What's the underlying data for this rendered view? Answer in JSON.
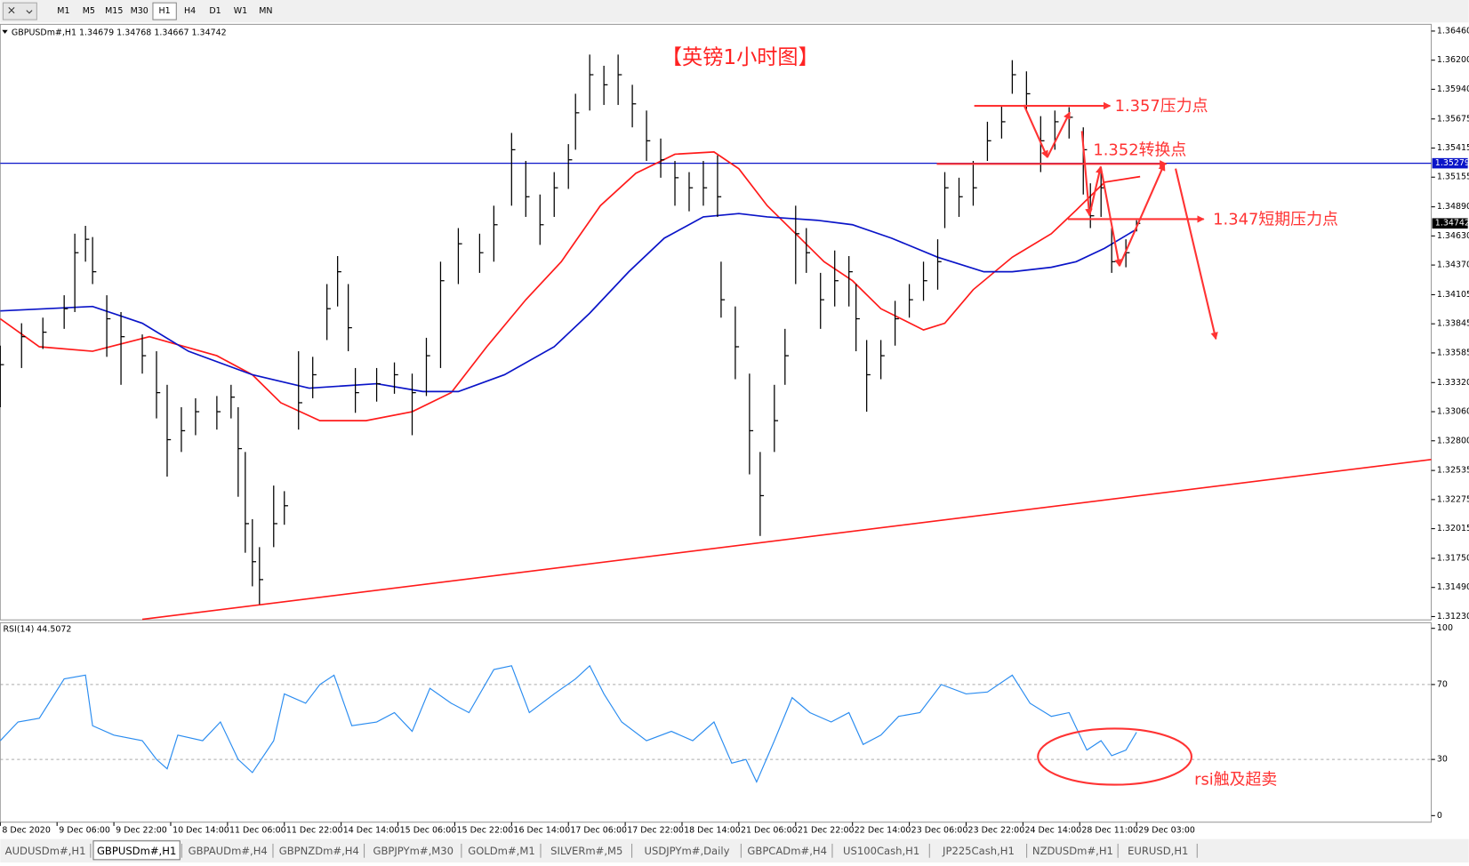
{
  "toolbar": {
    "timeframes": [
      "M1",
      "M5",
      "M15",
      "M30",
      "H1",
      "H4",
      "D1",
      "W1",
      "MN"
    ],
    "active": 4
  },
  "chart_data": {
    "type": "hlc",
    "symbol_header": "GBPUSDm#,H1  1.34679 1.34768 1.34667 1.34742",
    "title": "【英镑1小时图】",
    "color": "#000000",
    "x": [
      0,
      6,
      12,
      18,
      21,
      24,
      26,
      30,
      34,
      40,
      44,
      47,
      51,
      55,
      61,
      65,
      67,
      69,
      71,
      73,
      77,
      80,
      84,
      88,
      92,
      95,
      98,
      100,
      106,
      111,
      116,
      120,
      124,
      129,
      135,
      139,
      144,
      148,
      152,
      156,
      160,
      162,
      166,
      170,
      174,
      178,
      182,
      186,
      190,
      194,
      198,
      202,
      203,
      207,
      211,
      214,
      218,
      221,
      224,
      227,
      231,
      235,
      239,
      241,
      244,
      248,
      252,
      256,
      260,
      264,
      266,
      270,
      274,
      278,
      282,
      285,
      289,
      293,
      297,
      301,
      305,
      307,
      310,
      313,
      317,
      320
    ],
    "high": [
      1.3365,
      1.3385,
      1.339,
      1.341,
      1.3465,
      1.3472,
      1.3462,
      1.341,
      1.3395,
      1.3375,
      1.336,
      1.333,
      1.331,
      1.3318,
      1.332,
      1.333,
      1.331,
      1.327,
      1.321,
      1.3185,
      1.324,
      1.3235,
      1.336,
      1.3355,
      1.342,
      1.3445,
      1.342,
      1.3345,
      1.3345,
      1.335,
      1.334,
      1.3372,
      1.344,
      1.347,
      1.3465,
      1.349,
      1.3555,
      1.353,
      1.35,
      1.352,
      1.3545,
      1.359,
      1.3625,
      1.3615,
      1.3625,
      1.3598,
      1.3575,
      1.355,
      1.353,
      1.352,
      1.353,
      1.3535,
      1.344,
      1.34,
      1.334,
      1.327,
      1.333,
      1.338,
      1.349,
      1.347,
      1.343,
      1.345,
      1.3445,
      1.342,
      1.337,
      1.337,
      1.3405,
      1.342,
      1.344,
      1.346,
      1.352,
      1.3515,
      1.353,
      1.3565,
      1.358,
      1.362,
      1.361,
      1.357,
      1.3575,
      1.3578,
      1.356,
      1.351,
      1.352,
      1.347,
      1.346,
      1.3477
    ],
    "low": [
      1.331,
      1.3345,
      1.3362,
      1.338,
      1.3395,
      1.344,
      1.342,
      1.3355,
      1.333,
      1.334,
      1.33,
      1.3248,
      1.327,
      1.3285,
      1.329,
      1.33,
      1.323,
      1.318,
      1.315,
      1.3134,
      1.3185,
      1.3205,
      1.329,
      1.3318,
      1.337,
      1.34,
      1.336,
      1.3305,
      1.3315,
      1.3322,
      1.3285,
      1.332,
      1.3345,
      1.342,
      1.343,
      1.344,
      1.349,
      1.348,
      1.3455,
      1.348,
      1.3505,
      1.354,
      1.3575,
      1.358,
      1.358,
      1.356,
      1.353,
      1.3515,
      1.349,
      1.3485,
      1.349,
      1.348,
      1.339,
      1.3335,
      1.325,
      1.3195,
      1.327,
      1.333,
      1.342,
      1.343,
      1.338,
      1.34,
      1.34,
      1.336,
      1.3306,
      1.3335,
      1.3365,
      1.339,
      1.3405,
      1.3415,
      1.347,
      1.348,
      1.349,
      1.353,
      1.355,
      1.359,
      1.3575,
      1.352,
      1.354,
      1.355,
      1.35,
      1.347,
      1.348,
      1.343,
      1.3435,
      1.3467
    ],
    "close": [
      1.3348,
      1.3373,
      1.3377,
      1.3398,
      1.3448,
      1.346,
      1.3431,
      1.3389,
      1.3373,
      1.3356,
      1.3323,
      1.3281,
      1.3289,
      1.3306,
      1.3306,
      1.3319,
      1.3273,
      1.3206,
      1.3172,
      1.3156,
      1.3206,
      1.3222,
      1.3314,
      1.3339,
      1.3398,
      1.3431,
      1.3381,
      1.3323,
      1.3331,
      1.3339,
      1.3323,
      1.3356,
      1.3423,
      1.3456,
      1.3448,
      1.3473,
      1.354,
      1.3498,
      1.3473,
      1.3506,
      1.3531,
      1.3573,
      1.3607,
      1.3598,
      1.3607,
      1.3581,
      1.3548,
      1.3531,
      1.3515,
      1.3506,
      1.3506,
      1.3498,
      1.3406,
      1.3364,
      1.3289,
      1.3231,
      1.3298,
      1.3356,
      1.3465,
      1.3448,
      1.3406,
      1.3423,
      1.3431,
      1.3389,
      1.3339,
      1.3356,
      1.3389,
      1.3406,
      1.3423,
      1.344,
      1.3506,
      1.3498,
      1.3506,
      1.3548,
      1.3565,
      1.3607,
      1.359,
      1.3548,
      1.3565,
      1.3569,
      1.354,
      1.3481,
      1.3506,
      1.344,
      1.3448,
      1.34742
    ],
    "lines": [
      {
        "color": "#ff1a1a",
        "x": [
          0,
          11,
          26,
          42,
          61,
          71,
          79,
          90,
          103,
          116,
          127,
          137,
          148,
          158,
          169,
          179,
          190,
          201,
          208,
          216,
          224,
          232,
          240,
          248,
          260,
          266,
          274,
          285,
          296,
          303,
          311,
          321
        ],
        "values": [
          1.3389,
          1.3364,
          1.336,
          1.3373,
          1.3356,
          1.3339,
          1.3314,
          1.3298,
          1.3298,
          1.3306,
          1.3323,
          1.3364,
          1.3406,
          1.344,
          1.349,
          1.3519,
          1.3536,
          1.3538,
          1.3523,
          1.349,
          1.3465,
          1.344,
          1.3423,
          1.3398,
          1.3379,
          1.3385,
          1.3415,
          1.3444,
          1.3465,
          1.3486,
          1.3511,
          1.3516
        ]
      },
      {
        "color": "#0a14c8",
        "x": [
          0,
          26,
          40,
          53,
          71,
          87,
          106,
          119,
          129,
          142,
          156,
          166,
          177,
          187,
          198,
          208,
          216,
          230,
          240,
          251,
          264,
          277,
          285,
          296,
          303,
          311,
          320
        ],
        "values": [
          1.3396,
          1.34,
          1.3385,
          1.336,
          1.3339,
          1.3327,
          1.3331,
          1.3324,
          1.3324,
          1.3339,
          1.3364,
          1.3394,
          1.3431,
          1.3461,
          1.348,
          1.3483,
          1.348,
          1.3477,
          1.3473,
          1.3461,
          1.3444,
          1.3431,
          1.3431,
          1.3435,
          1.344,
          1.3452,
          1.3469
        ]
      }
    ],
    "trendline": {
      "color": "#ff1a1a",
      "x": [
        40,
        403
      ],
      "values": [
        1.31205,
        1.32633
      ]
    },
    "price_markers": [
      {
        "value": 1.35279,
        "color": "#0a14c8",
        "line": true
      },
      {
        "value": 1.34742,
        "color": "#000000",
        "line": false
      }
    ],
    "annotations": [
      "1.357压力点",
      "1.352转换点",
      "1.347短期压力点",
      "rsi触及超卖"
    ],
    "xlim": [
      0,
      403
    ],
    "ylim": [
      1.312,
      1.3652
    ],
    "yticks": [
      {
        "value": 1.3646,
        "label": "1.36460"
      },
      {
        "value": 1.362,
        "label": "1.36200"
      },
      {
        "value": 1.3594,
        "label": "1.35940"
      },
      1.35675,
      1.35415,
      1.35155,
      {
        "value": 1.3489,
        "label": "1.34890"
      },
      {
        "value": 1.3463,
        "label": "1.34630"
      },
      {
        "value": 1.3437,
        "label": "1.34370"
      },
      1.34105,
      1.33845,
      1.33585,
      {
        "value": 1.3332,
        "label": "1.33320"
      },
      {
        "value": 1.3306,
        "label": "1.33060"
      },
      {
        "value": 1.328,
        "label": "1.32800"
      },
      1.32535,
      1.32275,
      1.32015,
      {
        "value": 1.3175,
        "label": "1.31750"
      },
      {
        "value": 1.3149,
        "label": "1.31490"
      },
      {
        "value": 1.3123,
        "label": "1.31230"
      }
    ],
    "xticks": [
      {
        "value": 0,
        "label": "8 Dec 2020"
      },
      {
        "value": 16,
        "label": "9 Dec 06:00"
      },
      {
        "value": 32,
        "label": "9 Dec 22:00"
      },
      {
        "value": 48,
        "label": "10 Dec 14:00"
      },
      {
        "value": 64,
        "label": "11 Dec 06:00"
      },
      {
        "value": 80,
        "label": "11 Dec 22:00"
      },
      {
        "value": 96,
        "label": "14 Dec 14:00"
      },
      {
        "value": 112,
        "label": "15 Dec 06:00"
      },
      {
        "value": 128,
        "label": "15 Dec 22:00"
      },
      {
        "value": 144,
        "label": "16 Dec 14:00"
      },
      {
        "value": 160,
        "label": "17 Dec 06:00"
      },
      {
        "value": 176,
        "label": "17 Dec 22:00"
      },
      {
        "value": 192,
        "label": "18 Dec 14:00"
      },
      {
        "value": 208,
        "label": "21 Dec 06:00"
      },
      {
        "value": 224,
        "label": "21 Dec 22:00"
      },
      {
        "value": 240,
        "label": "22 Dec 14:00"
      },
      {
        "value": 256,
        "label": "23 Dec 06:00"
      },
      {
        "value": 272,
        "label": "23 Dec 22:00"
      },
      {
        "value": 288,
        "label": "24 Dec 14:00"
      },
      {
        "value": 304,
        "label": "28 Dec 11:00"
      },
      {
        "value": 320,
        "label": "29 Dec 03:00"
      }
    ],
    "rsi": {
      "type": "line",
      "label": "RSI(14) 44.5072",
      "color": "#2a8cf0",
      "ylim": [
        0,
        100
      ],
      "yticks": [
        0,
        30,
        70,
        100
      ],
      "levels": [
        30,
        70
      ],
      "x": [
        0,
        5,
        11,
        18,
        24,
        26,
        32,
        40,
        44,
        47,
        50,
        57,
        62,
        67,
        71,
        77,
        80,
        86,
        90,
        94,
        99,
        106,
        111,
        116,
        121,
        127,
        132,
        139,
        144,
        149,
        156,
        162,
        166,
        170,
        175,
        182,
        189,
        195,
        201,
        206,
        210,
        213,
        218,
        223,
        228,
        234,
        239,
        243,
        248,
        253,
        259,
        265,
        272,
        278,
        285,
        290,
        296,
        301,
        306,
        310,
        313,
        317,
        320
      ],
      "values": [
        40,
        50,
        52,
        73,
        75,
        48,
        43,
        40,
        30,
        25,
        43,
        40,
        50,
        30,
        23,
        40,
        65,
        60,
        70,
        75,
        48,
        50,
        55,
        45,
        68,
        60,
        55,
        78,
        80,
        55,
        65,
        73,
        80,
        65,
        50,
        40,
        45,
        40,
        50,
        28,
        30,
        18,
        40,
        63,
        55,
        50,
        55,
        38,
        43,
        53,
        55,
        70,
        65,
        66,
        75,
        60,
        53,
        55,
        35,
        40,
        32,
        35,
        44.5072
      ]
    }
  },
  "tabs": {
    "items": [
      "AUDUSDm#,H1",
      "GBPUSDm#,H1",
      "GBPAUDm#,H4",
      "GBPNZDm#,H4",
      "GBPJPYm#,M30",
      "GOLDm#,M1",
      "SILVERm#,M5",
      "USDJPYm#,Daily",
      "GBPCADm#,H4",
      "US100Cash,H1",
      "JP225Cash,H1",
      "NZDUSDm#,H1",
      "EURUSD,H1"
    ],
    "active": 1
  }
}
